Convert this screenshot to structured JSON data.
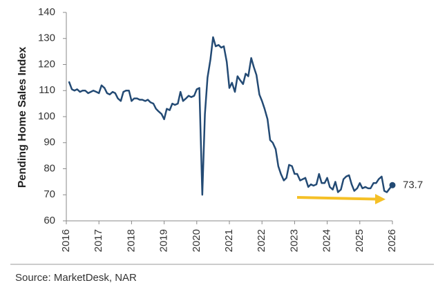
{
  "chart_data": {
    "type": "line",
    "y_label": "Pending Home Sales Index",
    "source": "Source: MarketDesk, NAR",
    "xlim": [
      2016,
      2026
    ],
    "xticks": [
      2016,
      2017,
      2018,
      2019,
      2020,
      2021,
      2022,
      2023,
      2024,
      2025,
      2026
    ],
    "ylim": [
      60,
      140
    ],
    "yticks": [
      60,
      70,
      80,
      90,
      100,
      110,
      120,
      130,
      140
    ],
    "x": [
      2016.08,
      2016.17,
      2016.25,
      2016.33,
      2016.42,
      2016.5,
      2016.58,
      2016.67,
      2016.75,
      2016.83,
      2016.92,
      2017,
      2017.08,
      2017.17,
      2017.25,
      2017.33,
      2017.42,
      2017.5,
      2017.58,
      2017.67,
      2017.75,
      2017.83,
      2017.92,
      2018,
      2018.08,
      2018.17,
      2018.25,
      2018.33,
      2018.42,
      2018.5,
      2018.58,
      2018.67,
      2018.75,
      2018.83,
      2018.92,
      2019,
      2019.08,
      2019.17,
      2019.25,
      2019.33,
      2019.42,
      2019.5,
      2019.58,
      2019.67,
      2019.75,
      2019.83,
      2019.92,
      2020,
      2020.08,
      2020.17,
      2020.25,
      2020.33,
      2020.42,
      2020.5,
      2020.58,
      2020.67,
      2020.75,
      2020.83,
      2020.92,
      2021,
      2021.08,
      2021.17,
      2021.25,
      2021.33,
      2021.42,
      2021.5,
      2021.58,
      2021.67,
      2021.75,
      2021.83,
      2021.92,
      2022,
      2022.08,
      2022.17,
      2022.25,
      2022.33,
      2022.42,
      2022.5,
      2022.58,
      2022.67,
      2022.75,
      2022.83,
      2022.92,
      2023,
      2023.08,
      2023.17,
      2023.25,
      2023.33,
      2023.42,
      2023.5,
      2023.58,
      2023.67,
      2023.75,
      2023.83,
      2023.92,
      2024,
      2024.08,
      2024.17,
      2024.25,
      2024.33,
      2024.42,
      2024.5,
      2024.58,
      2024.67,
      2024.75,
      2024.83,
      2024.92,
      2025,
      2025.08,
      2025.17,
      2025.25,
      2025.33,
      2025.42,
      2025.5,
      2025.58,
      2025.67,
      2025.75,
      2025.83,
      2025.92,
      2026
    ],
    "series": [
      {
        "color": "#234a74",
        "values": [
          113.5,
          110.5,
          110,
          110.5,
          109.5,
          110,
          110,
          109,
          109.5,
          110,
          109.5,
          109,
          112,
          111,
          109,
          108.5,
          109.5,
          109,
          107,
          106,
          109.5,
          110,
          110,
          106,
          107,
          107,
          106.5,
          106.5,
          106,
          106.5,
          105.5,
          105,
          103,
          102,
          101,
          99,
          103,
          102.5,
          105,
          104.5,
          105,
          109.5,
          106,
          107,
          108,
          107.5,
          108,
          110.5,
          111,
          70,
          101,
          115,
          122,
          130.5,
          127,
          127.5,
          126.5,
          127,
          121,
          111,
          113,
          109.5,
          115.5,
          114,
          112.5,
          116.5,
          115.5,
          122.5,
          119,
          116,
          108.5,
          106,
          103,
          99,
          91,
          90,
          87.5,
          81,
          78,
          75.5,
          76.5,
          81.5,
          81,
          78,
          78,
          75.5,
          76,
          76.5,
          73,
          74,
          73.5,
          74,
          78,
          74.5,
          74.5,
          76.5,
          73,
          72,
          75,
          71,
          72,
          76,
          77,
          77.5,
          74,
          71.5,
          72.5,
          74.5,
          72.5,
          73,
          72.5,
          72.5,
          74.5,
          74.5,
          76,
          77,
          71.5,
          71,
          72.5,
          73.7
        ]
      }
    ]
  }
}
